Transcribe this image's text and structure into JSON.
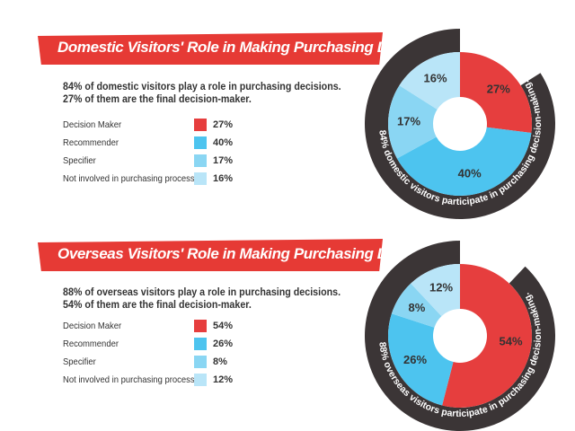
{
  "colors": {
    "banner": "#e63a35",
    "ring": "#3b3536",
    "decision_maker": "#e63e3e",
    "recommender": "#4dc4ef",
    "specifier": "#8ad6f3",
    "not_involved": "#b9e5f8"
  },
  "chart_data": [
    {
      "type": "pie",
      "title": "Domestic Visitors' Role in Making Purchasing Decisions",
      "description_lines": [
        "84% of domestic visitors play a role in purchasing decisions.",
        "27% of them are the final decision-maker."
      ],
      "categories": [
        "Decision Maker",
        "Recommender",
        "Specifier",
        "Not involved in purchasing process"
      ],
      "values": [
        27,
        40,
        17,
        16
      ],
      "value_labels": [
        "27%",
        "40%",
        "17%",
        "16%"
      ],
      "colors": [
        "#e63e3e",
        "#4dc4ef",
        "#8ad6f3",
        "#b9e5f8"
      ],
      "ring_text": "84% domestic visitors participate in purchasing decision-making.",
      "ring_fraction": 0.84
    },
    {
      "type": "pie",
      "title": "Overseas Visitors' Role in Making Purchasing Decisions",
      "description_lines": [
        "88% of overseas visitors play a role in purchasing decisions.",
        "54% of them are the final decision-maker."
      ],
      "categories": [
        "Decision Maker",
        "Recommender",
        "Specifier",
        "Not involved in purchasing process"
      ],
      "values": [
        54,
        26,
        8,
        12
      ],
      "value_labels": [
        "54%",
        "26%",
        "8%",
        "12%"
      ],
      "colors": [
        "#e63e3e",
        "#4dc4ef",
        "#8ad6f3",
        "#b9e5f8"
      ],
      "ring_text": "88% overseas visitors participate in purchasing decision-making.",
      "ring_fraction": 0.88
    }
  ]
}
